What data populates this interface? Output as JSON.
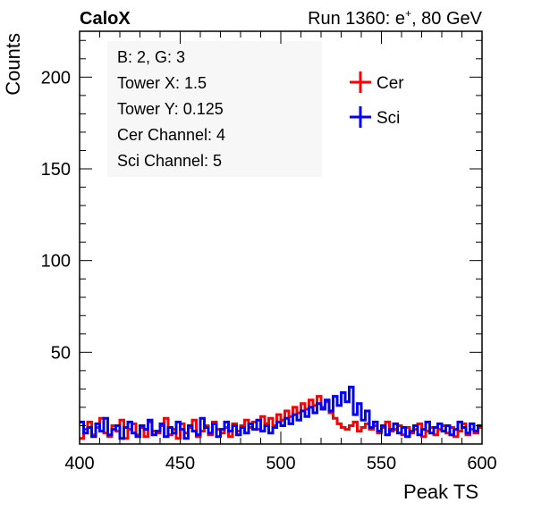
{
  "header": {
    "left": "CaloX",
    "right_prefix": "Run 1360: e",
    "right_sup": "+",
    "right_suffix": ", 80 GeV"
  },
  "info_box": {
    "lines": [
      "B: 2, G: 3",
      "Tower X: 1.5",
      "Tower Y: 0.125",
      "Cer Channel: 4",
      "Sci Channel: 5"
    ]
  },
  "chart_data": {
    "type": "line",
    "style": "step-histogram",
    "xlabel": "Peak TS",
    "ylabel": "Counts",
    "xlim": [
      400,
      600
    ],
    "ylim": [
      0,
      225
    ],
    "x_ticks": [
      400,
      450,
      500,
      550,
      600
    ],
    "y_ticks": [
      50,
      100,
      150,
      200
    ],
    "grid": false,
    "legend_position": "top-right",
    "colors": {
      "Cer": "#ff0000",
      "Sci": "#0000ff"
    },
    "bin_start": 400,
    "bin_width": 2,
    "series": [
      {
        "name": "Cer",
        "color": "#ff0000",
        "values": [
          3,
          8,
          12,
          5,
          9,
          14,
          6,
          4,
          10,
          7,
          13,
          3,
          8,
          11,
          5,
          9,
          4,
          12,
          7,
          6,
          10,
          14,
          5,
          8,
          3,
          11,
          6,
          9,
          13,
          4,
          7,
          10,
          5,
          12,
          8,
          6,
          9,
          4,
          11,
          7,
          10,
          13,
          9,
          12,
          8,
          15,
          11,
          14,
          10,
          16,
          13,
          18,
          15,
          20,
          17,
          22,
          19,
          24,
          21,
          26,
          20,
          23,
          17,
          14,
          11,
          9,
          8,
          10,
          12,
          7,
          9,
          11,
          8,
          10,
          6,
          9,
          12,
          7,
          8,
          10,
          5,
          9,
          6,
          8,
          11,
          4,
          7,
          9,
          5,
          8,
          10,
          6,
          9,
          4,
          7,
          11,
          5,
          8,
          6,
          9
        ]
      },
      {
        "name": "Sci",
        "color": "#0000ff",
        "values": [
          12,
          6,
          9,
          4,
          11,
          7,
          14,
          5,
          8,
          10,
          3,
          9,
          12,
          6,
          4,
          10,
          8,
          13,
          5,
          7,
          11,
          4,
          9,
          6,
          12,
          8,
          3,
          10,
          7,
          5,
          14,
          9,
          6,
          11,
          4,
          8,
          12,
          7,
          10,
          5,
          9,
          6,
          11,
          8,
          13,
          7,
          10,
          6,
          9,
          12,
          10,
          14,
          11,
          16,
          13,
          18,
          15,
          20,
          17,
          22,
          19,
          24,
          18,
          26,
          21,
          28,
          23,
          31,
          16,
          22,
          13,
          18,
          9,
          12,
          7,
          10,
          5,
          8,
          11,
          6,
          9,
          4,
          7,
          10,
          5,
          8,
          12,
          6,
          9,
          11,
          7,
          10,
          5,
          8,
          12,
          9,
          6,
          11,
          7,
          10
        ]
      }
    ]
  }
}
